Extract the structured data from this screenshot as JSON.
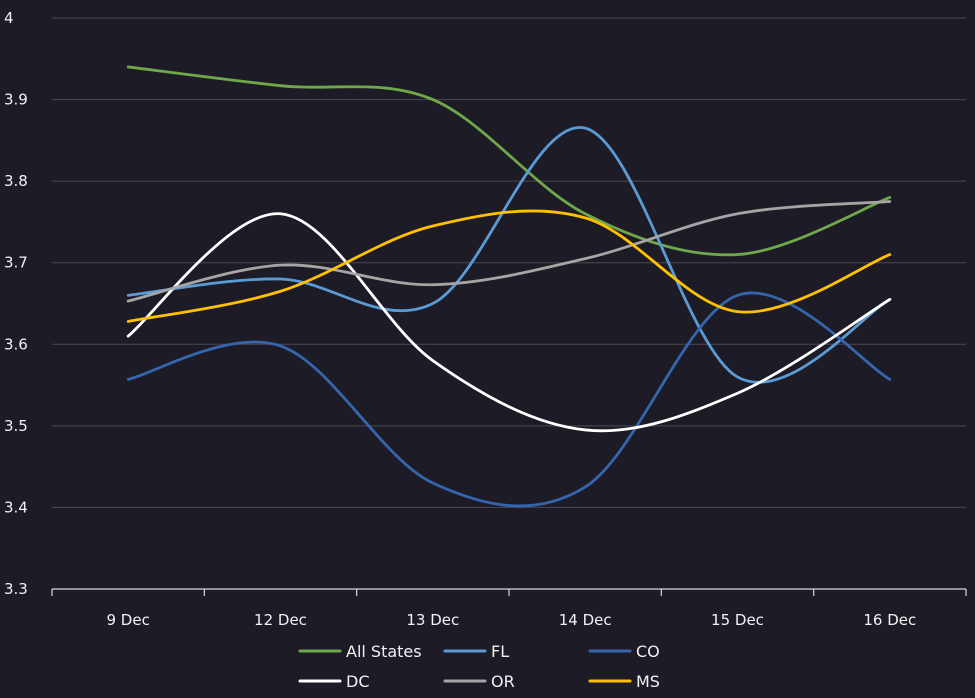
{
  "chart_data": {
    "type": "line",
    "title": "",
    "xlabel": "",
    "ylabel": "",
    "categories": [
      "9 Dec",
      "12 Dec",
      "13 Dec",
      "14 Dec",
      "15 Dec",
      "16 Dec"
    ],
    "ylim": [
      3.3,
      4.0
    ],
    "yticks": [
      "3.3",
      "3.4",
      "3.5",
      "3.6",
      "3.7",
      "3.8",
      "3.9",
      "4"
    ],
    "grid": true,
    "legend_position": "bottom",
    "series": [
      {
        "name": "All States",
        "color": "#6fa84b",
        "values": [
          3.94,
          3.917,
          3.9,
          3.76,
          3.71,
          3.78
        ]
      },
      {
        "name": "FL",
        "color": "#5b9bd5",
        "values": [
          3.66,
          3.68,
          3.65,
          3.865,
          3.56,
          3.655
        ]
      },
      {
        "name": "CO",
        "color": "#3465ad",
        "values": [
          3.557,
          3.598,
          3.43,
          3.425,
          3.66,
          3.557
        ]
      },
      {
        "name": "DC",
        "color": "#ffffff",
        "values": [
          3.61,
          3.76,
          3.58,
          3.495,
          3.54,
          3.655
        ]
      },
      {
        "name": "OR",
        "color": "#a5a5a5",
        "values": [
          3.653,
          3.697,
          3.673,
          3.705,
          3.76,
          3.775
        ]
      },
      {
        "name": "MS",
        "color": "#ffc000",
        "values": [
          3.628,
          3.665,
          3.745,
          3.755,
          3.64,
          3.71
        ]
      }
    ]
  }
}
